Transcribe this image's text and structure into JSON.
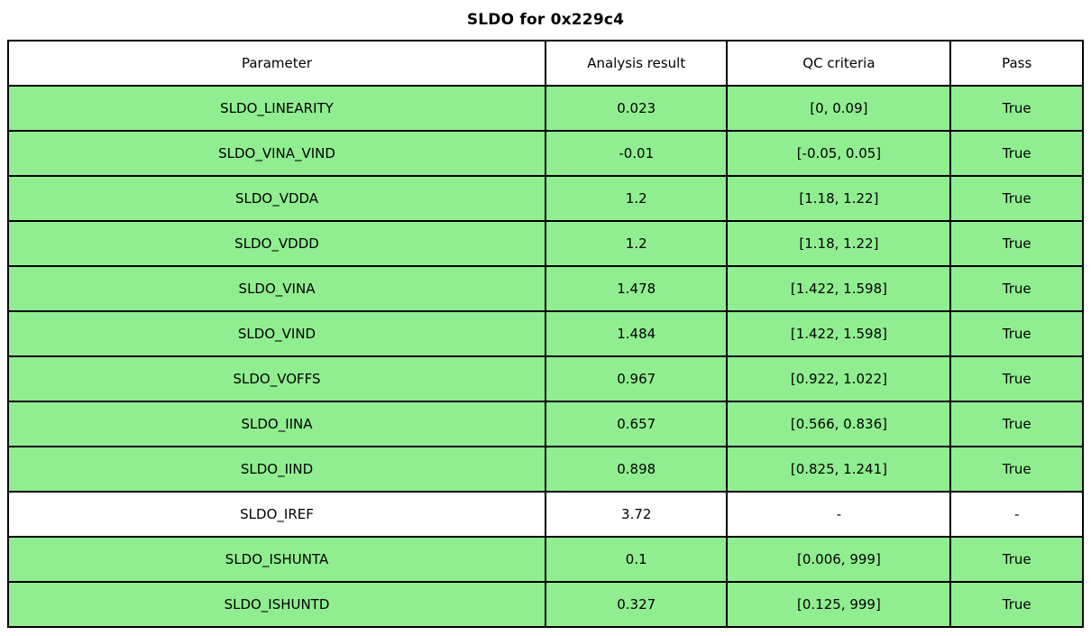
{
  "title": "SLDO for 0x229c4",
  "table": {
    "headers": [
      "Parameter",
      "Analysis result",
      "QC criteria",
      "Pass"
    ],
    "rows": [
      {
        "parameter": "SLDO_LINEARITY",
        "result": "0.023",
        "criteria": "[0, 0.09]",
        "pass": "True",
        "highlight": true
      },
      {
        "parameter": "SLDO_VINA_VIND",
        "result": "-0.01",
        "criteria": "[-0.05, 0.05]",
        "pass": "True",
        "highlight": true
      },
      {
        "parameter": "SLDO_VDDA",
        "result": "1.2",
        "criteria": "[1.18, 1.22]",
        "pass": "True",
        "highlight": true
      },
      {
        "parameter": "SLDO_VDDD",
        "result": "1.2",
        "criteria": "[1.18, 1.22]",
        "pass": "True",
        "highlight": true
      },
      {
        "parameter": "SLDO_VINA",
        "result": "1.478",
        "criteria": "[1.422, 1.598]",
        "pass": "True",
        "highlight": true
      },
      {
        "parameter": "SLDO_VIND",
        "result": "1.484",
        "criteria": "[1.422, 1.598]",
        "pass": "True",
        "highlight": true
      },
      {
        "parameter": "SLDO_VOFFS",
        "result": "0.967",
        "criteria": "[0.922, 1.022]",
        "pass": "True",
        "highlight": true
      },
      {
        "parameter": "SLDO_IINA",
        "result": "0.657",
        "criteria": "[0.566, 0.836]",
        "pass": "True",
        "highlight": true
      },
      {
        "parameter": "SLDO_IIND",
        "result": "0.898",
        "criteria": "[0.825, 1.241]",
        "pass": "True",
        "highlight": true
      },
      {
        "parameter": "SLDO_IREF",
        "result": "3.72",
        "criteria": "-",
        "pass": "-",
        "highlight": false
      },
      {
        "parameter": "SLDO_ISHUNTA",
        "result": "0.1",
        "criteria": "[0.006, 999]",
        "pass": "True",
        "highlight": true
      },
      {
        "parameter": "SLDO_ISHUNTD",
        "result": "0.327",
        "criteria": "[0.125, 999]",
        "pass": "True",
        "highlight": true
      }
    ]
  },
  "colors": {
    "pass_row_bg": "#90ee90",
    "neutral_row_bg": "#ffffff",
    "border": "#000000"
  }
}
